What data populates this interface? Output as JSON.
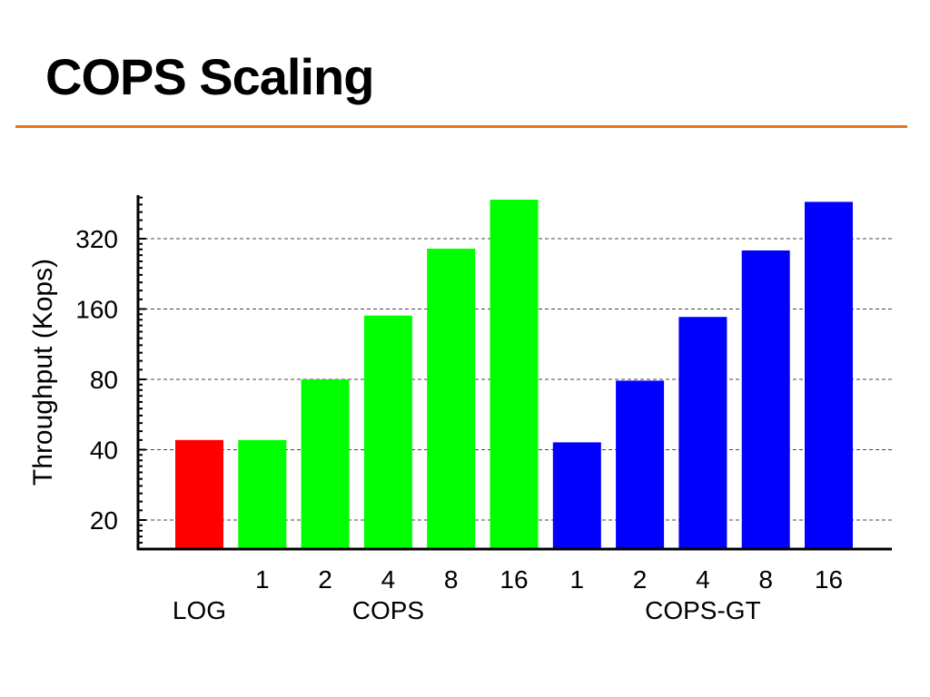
{
  "slide": {
    "title": "COPS Scaling",
    "rule_color": "#e8731a"
  },
  "chart_data": {
    "type": "bar",
    "title": "",
    "ylabel": "Throughput (Kops)",
    "xlabel": "",
    "yscale": "log2",
    "ylim": [
      15,
      500
    ],
    "yticks": [
      20,
      40,
      80,
      160,
      320
    ],
    "grid": "horizontal dashed",
    "legend": "none",
    "groups": [
      {
        "label": "LOG",
        "color": "#ff0000",
        "bars": [
          {
            "tick": "",
            "value": 44
          }
        ]
      },
      {
        "label": "COPS",
        "color": "#00ff00",
        "bars": [
          {
            "tick": "1",
            "value": 44
          },
          {
            "tick": "2",
            "value": 80
          },
          {
            "tick": "4",
            "value": 150
          },
          {
            "tick": "8",
            "value": 290
          },
          {
            "tick": "16",
            "value": 470
          }
        ]
      },
      {
        "label": "COPS-GT",
        "color": "#0000ff",
        "bars": [
          {
            "tick": "1",
            "value": 43
          },
          {
            "tick": "2",
            "value": 79
          },
          {
            "tick": "4",
            "value": 148
          },
          {
            "tick": "8",
            "value": 285
          },
          {
            "tick": "16",
            "value": 460
          }
        ]
      }
    ]
  }
}
